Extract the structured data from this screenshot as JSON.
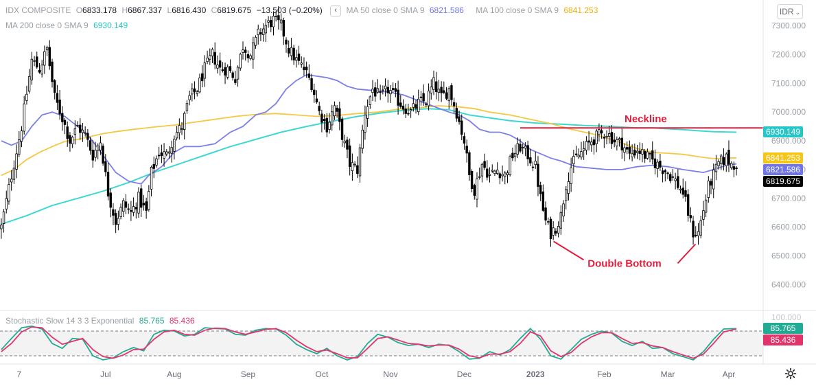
{
  "legend": {
    "symbol": "IDX COMPOSITE",
    "o_label": "O",
    "o_value": "6833.178",
    "h_label": "H",
    "h_value": "6867.337",
    "l_label": "L",
    "l_value": "6816.430",
    "c_label": "C",
    "c_value": "6819.675",
    "change": "−13.503 (−0.20%)",
    "ma50_label": "MA 50 close 0 SMA 9",
    "ma50_value": "6821.586",
    "ma100_label": "MA 100 close 0 SMA 9",
    "ma100_value": "6841.253",
    "ma200_label": "MA 200 close 0 SMA 9",
    "ma200_value": "6930.149",
    "collapse_glyph": "‹"
  },
  "currency": "IDR",
  "settings_icon": "gear-icon",
  "price_tags": [
    {
      "text": "6930.149",
      "value": 6930.149,
      "color": "#26c6c6"
    },
    {
      "text": "6841.253",
      "value": 6841.253,
      "color": "#f5c518"
    },
    {
      "text": "6821.586",
      "value": 6821.586,
      "color": "#6f74e8"
    },
    {
      "text": "6819.675",
      "value": 6819.675,
      "color": "#000000"
    }
  ],
  "stoch": {
    "label": "Stochastic Slow 14 3 3 Exponential",
    "k_value": "85.765",
    "d_value": "85.436",
    "k_color": "#22ab94",
    "d_color": "#e3336b",
    "top_tick": "100.000",
    "levels": [
      80,
      20
    ]
  },
  "chart_data": {
    "type": "candlestick",
    "title": "IDX COMPOSITE",
    "y_ticks": [
      "7300.000",
      "7200.000",
      "7100.000",
      "7000.000",
      "6900.000",
      "6800.000",
      "6700.000",
      "6600.000",
      "6500.000",
      "6400.000"
    ],
    "y_tick_values": [
      7300,
      7200,
      7100,
      7000,
      6900,
      6800,
      6700,
      6600,
      6500,
      6400
    ],
    "ylim": [
      6310,
      7390
    ],
    "x_ticks": [
      "7",
      "Jul",
      "Aug",
      "Sep",
      "Oct",
      "Nov",
      "Dec",
      "2023",
      "Feb",
      "Mar",
      "Apr"
    ],
    "x_tick_index": [
      7,
      41,
      68,
      97,
      126,
      153,
      182,
      210,
      237,
      262,
      286
    ],
    "x_bold": [
      "2023"
    ],
    "n_bars": 300,
    "grid": false,
    "close_path": [
      [
        0,
        6600
      ],
      [
        4,
        6780
      ],
      [
        8,
        6950
      ],
      [
        12,
        7180
      ],
      [
        15,
        7150
      ],
      [
        18,
        7220
      ],
      [
        21,
        7050
      ],
      [
        24,
        6980
      ],
      [
        27,
        6900
      ],
      [
        30,
        6950
      ],
      [
        33,
        6920
      ],
      [
        36,
        6850
      ],
      [
        39,
        6900
      ],
      [
        42,
        6720
      ],
      [
        45,
        6620
      ],
      [
        48,
        6680
      ],
      [
        51,
        6650
      ],
      [
        54,
        6700
      ],
      [
        57,
        6650
      ],
      [
        59,
        6790
      ],
      [
        62,
        6860
      ],
      [
        65,
        6850
      ],
      [
        68,
        6920
      ],
      [
        71,
        6950
      ],
      [
        74,
        7050
      ],
      [
        77,
        7080
      ],
      [
        80,
        7150
      ],
      [
        83,
        7200
      ],
      [
        86,
        7150
      ],
      [
        89,
        7150
      ],
      [
        92,
        7120
      ],
      [
        95,
        7230
      ],
      [
        98,
        7200
      ],
      [
        101,
        7270
      ],
      [
        104,
        7300
      ],
      [
        107,
        7320
      ],
      [
        110,
        7300
      ],
      [
        113,
        7220
      ],
      [
        116,
        7180
      ],
      [
        119,
        7150
      ],
      [
        122,
        7100
      ],
      [
        125,
        7000
      ],
      [
        128,
        6950
      ],
      [
        131,
        7020
      ],
      [
        134,
        6920
      ],
      [
        137,
        6820
      ],
      [
        140,
        6800
      ],
      [
        143,
        7000
      ],
      [
        146,
        7080
      ],
      [
        149,
        7050
      ],
      [
        152,
        7080
      ],
      [
        155,
        7050
      ],
      [
        158,
        7020
      ],
      [
        161,
        7000
      ],
      [
        164,
        7030
      ],
      [
        167,
        7040
      ],
      [
        170,
        7100
      ],
      [
        173,
        7050
      ],
      [
        176,
        7080
      ],
      [
        179,
        7000
      ],
      [
        182,
        6900
      ],
      [
        184,
        6780
      ],
      [
        186,
        6730
      ],
      [
        189,
        6820
      ],
      [
        192,
        6780
      ],
      [
        195,
        6800
      ],
      [
        198,
        6780
      ],
      [
        201,
        6850
      ],
      [
        204,
        6880
      ],
      [
        207,
        6850
      ],
      [
        210,
        6810
      ],
      [
        212,
        6700
      ],
      [
        214,
        6620
      ],
      [
        216,
        6580
      ],
      [
        218,
        6600
      ],
      [
        220,
        6640
      ],
      [
        222,
        6750
      ],
      [
        224,
        6810
      ],
      [
        226,
        6840
      ],
      [
        229,
        6870
      ],
      [
        232,
        6900
      ],
      [
        235,
        6920
      ],
      [
        238,
        6930
      ],
      [
        241,
        6900
      ],
      [
        244,
        6890
      ],
      [
        247,
        6850
      ],
      [
        250,
        6870
      ],
      [
        253,
        6850
      ],
      [
        256,
        6830
      ],
      [
        259,
        6810
      ],
      [
        262,
        6790
      ],
      [
        265,
        6760
      ],
      [
        268,
        6720
      ],
      [
        270,
        6650
      ],
      [
        272,
        6580
      ],
      [
        274,
        6580
      ],
      [
        276,
        6660
      ],
      [
        278,
        6740
      ],
      [
        280,
        6780
      ],
      [
        282,
        6820
      ],
      [
        285,
        6840
      ],
      [
        287,
        6820
      ],
      [
        289,
        6820
      ]
    ],
    "ma50_path": [
      [
        0,
        6900
      ],
      [
        4,
        6885
      ],
      [
        8,
        6900
      ],
      [
        12,
        6950
      ],
      [
        16,
        6990
      ],
      [
        20,
        7000
      ],
      [
        25,
        6985
      ],
      [
        30,
        6950
      ],
      [
        35,
        6910
      ],
      [
        40,
        6850
      ],
      [
        45,
        6790
      ],
      [
        50,
        6760
      ],
      [
        55,
        6750
      ],
      [
        58,
        6780
      ],
      [
        63,
        6810
      ],
      [
        68,
        6860
      ],
      [
        72,
        6880
      ],
      [
        78,
        6880
      ],
      [
        84,
        6890
      ],
      [
        90,
        6930
      ],
      [
        95,
        6950
      ],
      [
        100,
        6990
      ],
      [
        104,
        7000
      ],
      [
        108,
        7030
      ],
      [
        112,
        7080
      ],
      [
        116,
        7110
      ],
      [
        120,
        7130
      ],
      [
        124,
        7125
      ],
      [
        128,
        7120
      ],
      [
        132,
        7110
      ],
      [
        136,
        7090
      ],
      [
        140,
        7080
      ],
      [
        146,
        7075
      ],
      [
        152,
        7070
      ],
      [
        158,
        7060
      ],
      [
        164,
        7040
      ],
      [
        170,
        7020
      ],
      [
        176,
        7000
      ],
      [
        180,
        6990
      ],
      [
        184,
        6970
      ],
      [
        188,
        6940
      ],
      [
        192,
        6930
      ],
      [
        196,
        6930
      ],
      [
        200,
        6920
      ],
      [
        204,
        6900
      ],
      [
        208,
        6870
      ],
      [
        212,
        6855
      ],
      [
        216,
        6840
      ],
      [
        220,
        6830
      ],
      [
        226,
        6810
      ],
      [
        232,
        6805
      ],
      [
        238,
        6800
      ],
      [
        244,
        6800
      ],
      [
        250,
        6810
      ],
      [
        256,
        6815
      ],
      [
        262,
        6810
      ],
      [
        268,
        6800
      ],
      [
        272,
        6795
      ],
      [
        276,
        6790
      ],
      [
        280,
        6800
      ],
      [
        285,
        6815
      ],
      [
        289,
        6820
      ]
    ],
    "ma100_path": [
      [
        0,
        6780
      ],
      [
        5,
        6800
      ],
      [
        10,
        6835
      ],
      [
        15,
        6860
      ],
      [
        20,
        6880
      ],
      [
        25,
        6898
      ],
      [
        30,
        6905
      ],
      [
        35,
        6915
      ],
      [
        40,
        6925
      ],
      [
        45,
        6932
      ],
      [
        52,
        6940
      ],
      [
        60,
        6948
      ],
      [
        68,
        6955
      ],
      [
        76,
        6965
      ],
      [
        84,
        6975
      ],
      [
        92,
        6985
      ],
      [
        100,
        6992
      ],
      [
        108,
        6995
      ],
      [
        116,
        6990
      ],
      [
        124,
        6985
      ],
      [
        132,
        6988
      ],
      [
        140,
        6995
      ],
      [
        148,
        7000
      ],
      [
        156,
        7010
      ],
      [
        164,
        7015
      ],
      [
        172,
        7022
      ],
      [
        180,
        7018
      ],
      [
        186,
        7012
      ],
      [
        192,
        7000
      ],
      [
        200,
        6990
      ],
      [
        208,
        6975
      ],
      [
        216,
        6960
      ],
      [
        224,
        6940
      ],
      [
        232,
        6925
      ],
      [
        238,
        6910
      ],
      [
        244,
        6893
      ],
      [
        250,
        6873
      ],
      [
        256,
        6860
      ],
      [
        262,
        6857
      ],
      [
        268,
        6853
      ],
      [
        274,
        6845
      ],
      [
        280,
        6838
      ],
      [
        289,
        6841
      ]
    ],
    "ma200_path": [
      [
        0,
        6610
      ],
      [
        10,
        6640
      ],
      [
        20,
        6675
      ],
      [
        30,
        6700
      ],
      [
        40,
        6725
      ],
      [
        50,
        6755
      ],
      [
        60,
        6790
      ],
      [
        70,
        6820
      ],
      [
        80,
        6850
      ],
      [
        90,
        6880
      ],
      [
        100,
        6905
      ],
      [
        110,
        6930
      ],
      [
        120,
        6950
      ],
      [
        130,
        6968
      ],
      [
        140,
        6985
      ],
      [
        150,
        6998
      ],
      [
        160,
        7008
      ],
      [
        168,
        7012
      ],
      [
        176,
        7008
      ],
      [
        184,
        6990
      ],
      [
        192,
        6980
      ],
      [
        200,
        6970
      ],
      [
        210,
        6962
      ],
      [
        220,
        6958
      ],
      [
        230,
        6953
      ],
      [
        240,
        6950
      ],
      [
        250,
        6945
      ],
      [
        256,
        6945
      ],
      [
        262,
        6942
      ],
      [
        268,
        6939
      ],
      [
        274,
        6935
      ],
      [
        280,
        6932
      ],
      [
        289,
        6930
      ]
    ],
    "ma_colors": {
      "ma50": "#7b7fe8",
      "ma100": "#f5c842",
      "ma200": "#3fd8d0"
    },
    "up_color": "#ffffff",
    "down_color": "#000000",
    "stoch_k_path": [
      [
        0,
        35
      ],
      [
        4,
        62
      ],
      [
        8,
        88
      ],
      [
        12,
        92
      ],
      [
        16,
        85
      ],
      [
        20,
        50
      ],
      [
        24,
        38
      ],
      [
        28,
        62
      ],
      [
        32,
        60
      ],
      [
        36,
        20
      ],
      [
        40,
        10
      ],
      [
        44,
        15
      ],
      [
        48,
        30
      ],
      [
        52,
        40
      ],
      [
        56,
        32
      ],
      [
        60,
        72
      ],
      [
        64,
        82
      ],
      [
        68,
        80
      ],
      [
        72,
        68
      ],
      [
        76,
        72
      ],
      [
        80,
        88
      ],
      [
        84,
        86
      ],
      [
        88,
        85
      ],
      [
        92,
        72
      ],
      [
        96,
        70
      ],
      [
        100,
        82
      ],
      [
        104,
        86
      ],
      [
        108,
        85
      ],
      [
        112,
        70
      ],
      [
        116,
        48
      ],
      [
        120,
        35
      ],
      [
        124,
        25
      ],
      [
        128,
        38
      ],
      [
        132,
        20
      ],
      [
        136,
        10
      ],
      [
        140,
        18
      ],
      [
        144,
        50
      ],
      [
        148,
        72
      ],
      [
        152,
        65
      ],
      [
        156,
        52
      ],
      [
        160,
        45
      ],
      [
        164,
        48
      ],
      [
        168,
        40
      ],
      [
        172,
        48
      ],
      [
        176,
        45
      ],
      [
        180,
        30
      ],
      [
        184,
        12
      ],
      [
        188,
        14
      ],
      [
        192,
        30
      ],
      [
        196,
        22
      ],
      [
        200,
        35
      ],
      [
        204,
        62
      ],
      [
        208,
        86
      ],
      [
        212,
        60
      ],
      [
        216,
        20
      ],
      [
        220,
        12
      ],
      [
        224,
        35
      ],
      [
        228,
        60
      ],
      [
        232,
        72
      ],
      [
        236,
        80
      ],
      [
        240,
        75
      ],
      [
        244,
        55
      ],
      [
        248,
        45
      ],
      [
        252,
        55
      ],
      [
        256,
        38
      ],
      [
        260,
        40
      ],
      [
        264,
        25
      ],
      [
        268,
        18
      ],
      [
        272,
        10
      ],
      [
        276,
        30
      ],
      [
        280,
        60
      ],
      [
        284,
        85
      ],
      [
        289,
        86
      ]
    ],
    "stoch_d_path": [
      [
        0,
        30
      ],
      [
        4,
        50
      ],
      [
        8,
        78
      ],
      [
        12,
        90
      ],
      [
        16,
        88
      ],
      [
        20,
        65
      ],
      [
        24,
        48
      ],
      [
        28,
        55
      ],
      [
        32,
        62
      ],
      [
        36,
        35
      ],
      [
        40,
        18
      ],
      [
        44,
        14
      ],
      [
        48,
        22
      ],
      [
        52,
        35
      ],
      [
        56,
        36
      ],
      [
        60,
        60
      ],
      [
        64,
        78
      ],
      [
        68,
        82
      ],
      [
        72,
        72
      ],
      [
        76,
        70
      ],
      [
        80,
        82
      ],
      [
        84,
        87
      ],
      [
        88,
        86
      ],
      [
        92,
        78
      ],
      [
        96,
        72
      ],
      [
        100,
        78
      ],
      [
        104,
        84
      ],
      [
        108,
        86
      ],
      [
        112,
        76
      ],
      [
        116,
        58
      ],
      [
        120,
        42
      ],
      [
        124,
        30
      ],
      [
        128,
        34
      ],
      [
        132,
        25
      ],
      [
        136,
        15
      ],
      [
        140,
        15
      ],
      [
        144,
        38
      ],
      [
        148,
        62
      ],
      [
        152,
        66
      ],
      [
        156,
        58
      ],
      [
        160,
        50
      ],
      [
        164,
        48
      ],
      [
        168,
        44
      ],
      [
        172,
        46
      ],
      [
        176,
        46
      ],
      [
        180,
        36
      ],
      [
        184,
        20
      ],
      [
        188,
        15
      ],
      [
        192,
        24
      ],
      [
        196,
        24
      ],
      [
        200,
        30
      ],
      [
        204,
        50
      ],
      [
        208,
        78
      ],
      [
        212,
        68
      ],
      [
        216,
        32
      ],
      [
        220,
        18
      ],
      [
        224,
        28
      ],
      [
        228,
        50
      ],
      [
        232,
        66
      ],
      [
        236,
        76
      ],
      [
        240,
        76
      ],
      [
        244,
        62
      ],
      [
        248,
        50
      ],
      [
        252,
        52
      ],
      [
        256,
        44
      ],
      [
        260,
        40
      ],
      [
        264,
        30
      ],
      [
        268,
        22
      ],
      [
        272,
        14
      ],
      [
        276,
        24
      ],
      [
        280,
        50
      ],
      [
        284,
        78
      ],
      [
        289,
        85
      ]
    ],
    "annotations": {
      "neckline_label": "Neckline",
      "double_bottom_label": "Double Bottom",
      "neckline_value": 6945,
      "neckline_start": 204,
      "neckline_end": 300,
      "bottom1_index": 216,
      "bottom2_index": 274,
      "annotation_color": "#e21d3c"
    }
  }
}
